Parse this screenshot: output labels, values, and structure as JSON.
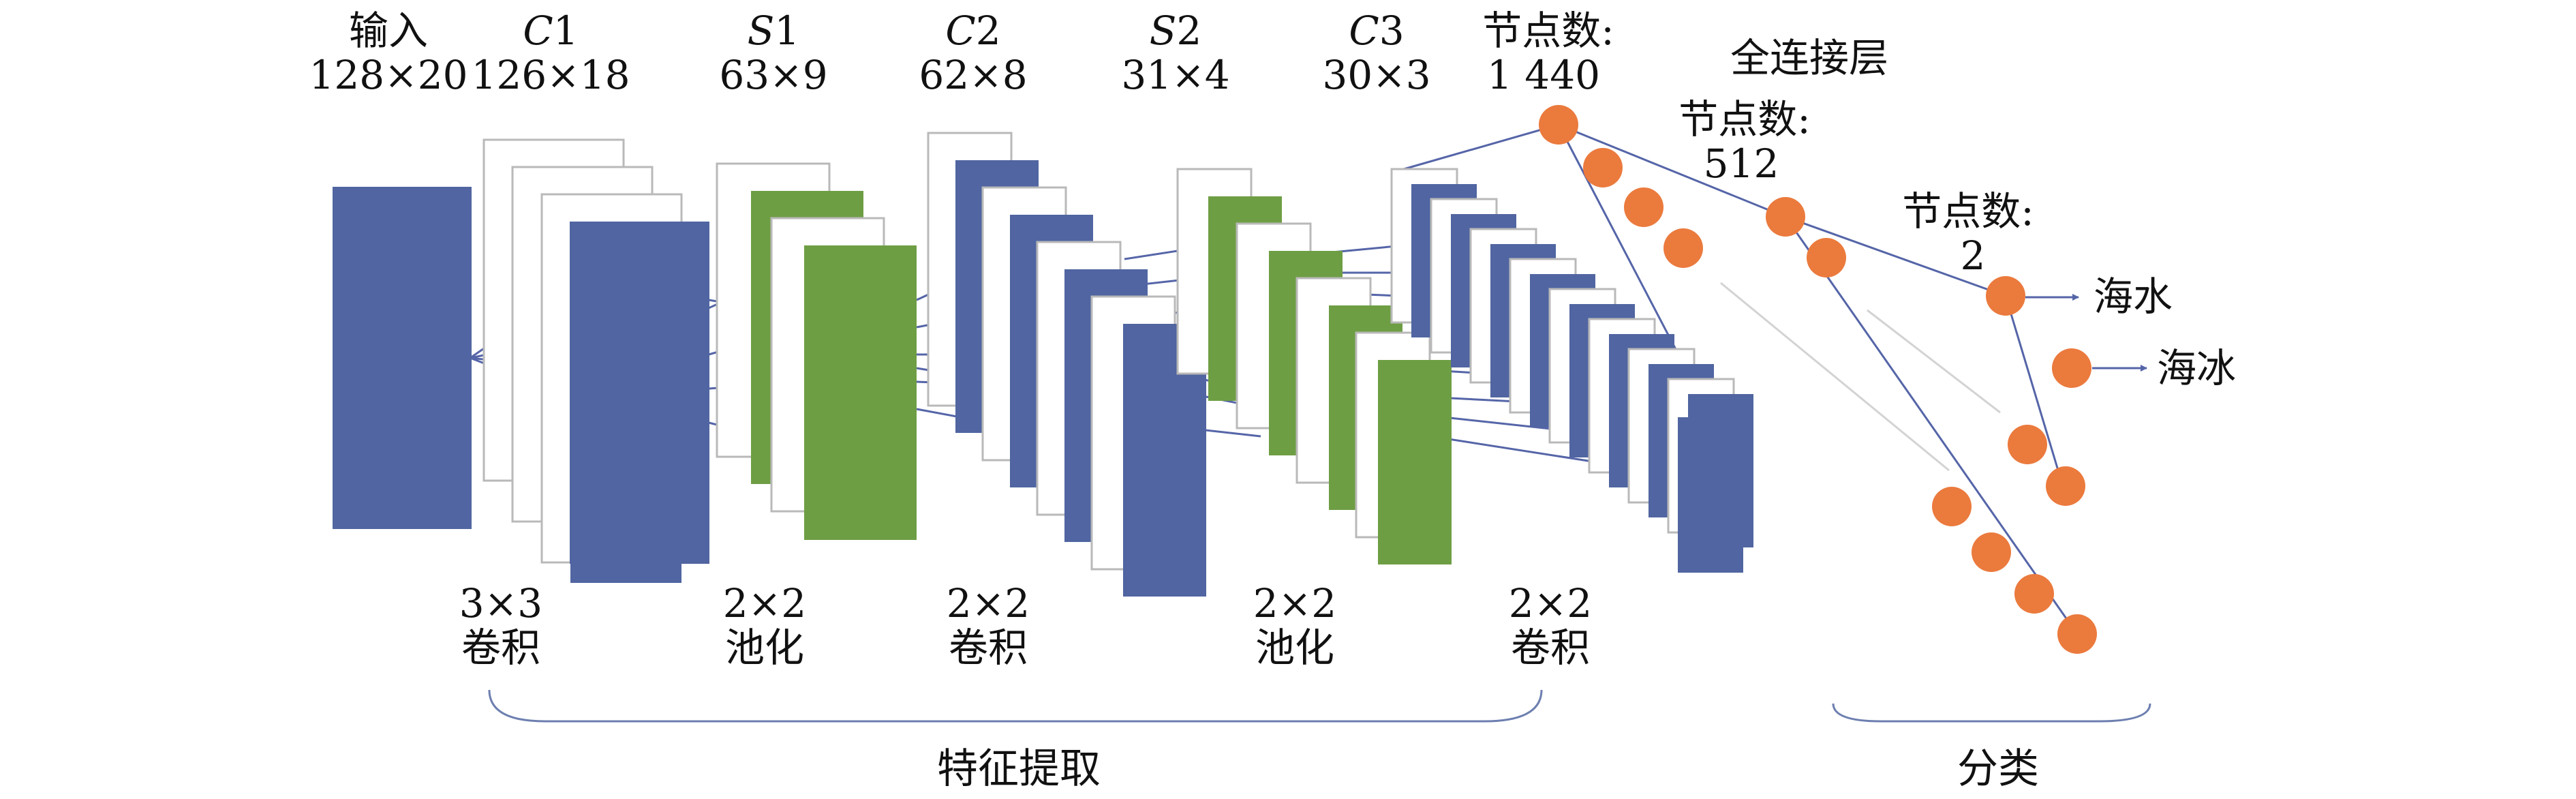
{
  "layers": [
    {
      "name": "输入",
      "size": "128×20",
      "italic": false
    },
    {
      "name": "C",
      "index": "1",
      "size": "126×18",
      "italic": true
    },
    {
      "name": "S",
      "index": "1",
      "size": "63×9",
      "italic": true
    },
    {
      "name": "C",
      "index": "2",
      "size": "62×8",
      "italic": true
    },
    {
      "name": "S",
      "index": "2",
      "size": "31×4",
      "italic": true
    },
    {
      "name": "C",
      "index": "3",
      "size": "30×3",
      "italic": true
    }
  ],
  "operations": [
    {
      "kernel": "3×3",
      "op": "卷积"
    },
    {
      "kernel": "2×2",
      "op": "池化"
    },
    {
      "kernel": "2×2",
      "op": "卷积"
    },
    {
      "kernel": "2×2",
      "op": "池化"
    },
    {
      "kernel": "2×2",
      "op": "卷积"
    }
  ],
  "fully_connected": {
    "title": "全连接层",
    "node_label": "节点数:",
    "layer1_nodes": "1 440",
    "layer2_nodes": "512",
    "output_nodes": "2"
  },
  "outputs": [
    "海水",
    "海冰"
  ],
  "stages": {
    "feature_extraction": "特征提取",
    "classification": "分类"
  },
  "colors": {
    "conv": "#5065a1",
    "pool": "#6e9e44",
    "node": "#eb7a3d",
    "line": "#5565a8",
    "outline": "#b9b9b9"
  }
}
